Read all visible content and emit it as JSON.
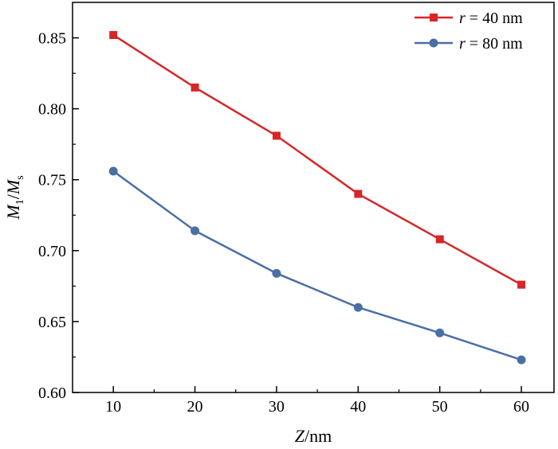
{
  "chart_data": {
    "type": "line",
    "x": [
      10,
      20,
      30,
      40,
      50,
      60
    ],
    "series": [
      {
        "name": "r = 40 nm",
        "name_var": "r",
        "name_rest": " = 40 nm",
        "values": [
          0.852,
          0.815,
          0.781,
          0.74,
          0.708,
          0.676
        ],
        "color": "#d62728",
        "marker": "square"
      },
      {
        "name": "r = 80 nm",
        "name_var": "r",
        "name_rest": " = 80 nm",
        "values": [
          0.756,
          0.714,
          0.684,
          0.66,
          0.642,
          0.623
        ],
        "color": "#4a6fa5",
        "marker": "circle"
      }
    ],
    "xlabel": "Z/nm",
    "xlabel_var": "Z",
    "xlabel_rest": "/nm",
    "ylabel": "M1/Ms",
    "ylabel_parts": {
      "m1": "M",
      "sub1": "1",
      "slash": "/",
      "m2": "M",
      "sub2": "s"
    },
    "xlim": [
      5,
      64
    ],
    "ylim": [
      0.6,
      0.875
    ],
    "xticks": [
      10,
      20,
      30,
      40,
      50,
      60
    ],
    "xtick_labels": [
      "10",
      "20",
      "30",
      "40",
      "50",
      "60"
    ],
    "yticks": [
      0.6,
      0.65,
      0.7,
      0.75,
      0.8,
      0.85
    ],
    "ytick_labels": [
      "0.60",
      "0.65",
      "0.70",
      "0.75",
      "0.80",
      "0.85"
    ],
    "grid": false,
    "legend_position": "top-right"
  }
}
